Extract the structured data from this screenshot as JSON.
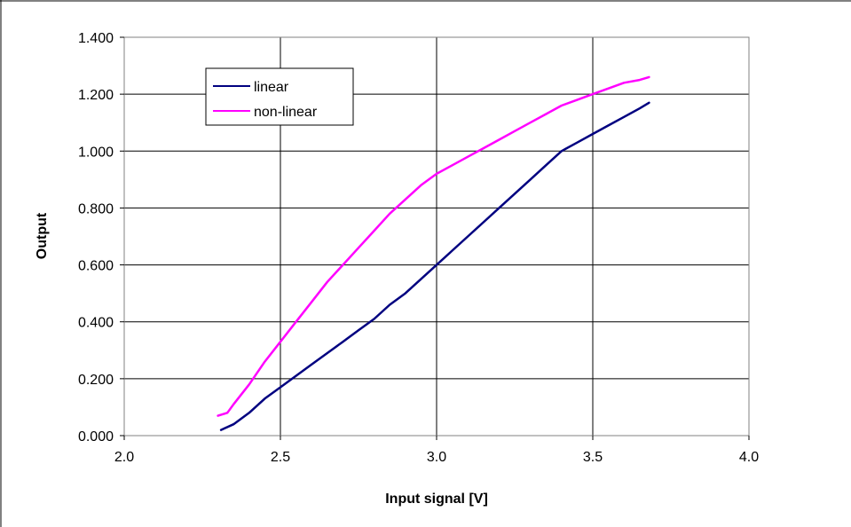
{
  "chart_data": {
    "type": "line",
    "title": "",
    "xlabel": "Input signal [V]",
    "ylabel": "Output",
    "xlim": [
      2.0,
      4.0
    ],
    "ylim": [
      0.0,
      1.4
    ],
    "x_ticks": [
      "2.0",
      "2.5",
      "3.0",
      "3.5",
      "4.0"
    ],
    "y_ticks": [
      "0.000",
      "0.200",
      "0.400",
      "0.600",
      "0.800",
      "1.000",
      "1.200",
      "1.400"
    ],
    "grid": true,
    "legend_position": "top-left",
    "series": [
      {
        "name": "linear",
        "color": "#000080",
        "x": [
          2.31,
          2.35,
          2.4,
          2.45,
          2.5,
          2.55,
          2.6,
          2.65,
          2.7,
          2.75,
          2.8,
          2.85,
          2.9,
          2.95,
          3.0,
          3.05,
          3.1,
          3.15,
          3.2,
          3.25,
          3.3,
          3.35,
          3.4,
          3.45,
          3.5,
          3.55,
          3.6,
          3.65,
          3.68
        ],
        "y": [
          0.02,
          0.04,
          0.08,
          0.13,
          0.17,
          0.21,
          0.25,
          0.29,
          0.33,
          0.37,
          0.41,
          0.46,
          0.5,
          0.55,
          0.6,
          0.65,
          0.7,
          0.75,
          0.8,
          0.85,
          0.9,
          0.95,
          1.0,
          1.03,
          1.06,
          1.09,
          1.12,
          1.15,
          1.17
        ]
      },
      {
        "name": "non-linear",
        "color": "#ff00ff",
        "x": [
          2.3,
          2.33,
          2.35,
          2.4,
          2.45,
          2.5,
          2.55,
          2.6,
          2.65,
          2.7,
          2.75,
          2.8,
          2.85,
          2.9,
          2.95,
          3.0,
          3.05,
          3.1,
          3.15,
          3.2,
          3.25,
          3.3,
          3.35,
          3.4,
          3.45,
          3.5,
          3.55,
          3.6,
          3.65,
          3.68
        ],
        "y": [
          0.07,
          0.08,
          0.11,
          0.18,
          0.26,
          0.33,
          0.4,
          0.47,
          0.54,
          0.6,
          0.66,
          0.72,
          0.78,
          0.83,
          0.88,
          0.92,
          0.95,
          0.98,
          1.01,
          1.04,
          1.07,
          1.1,
          1.13,
          1.16,
          1.18,
          1.2,
          1.22,
          1.24,
          1.25,
          1.26
        ]
      }
    ]
  }
}
